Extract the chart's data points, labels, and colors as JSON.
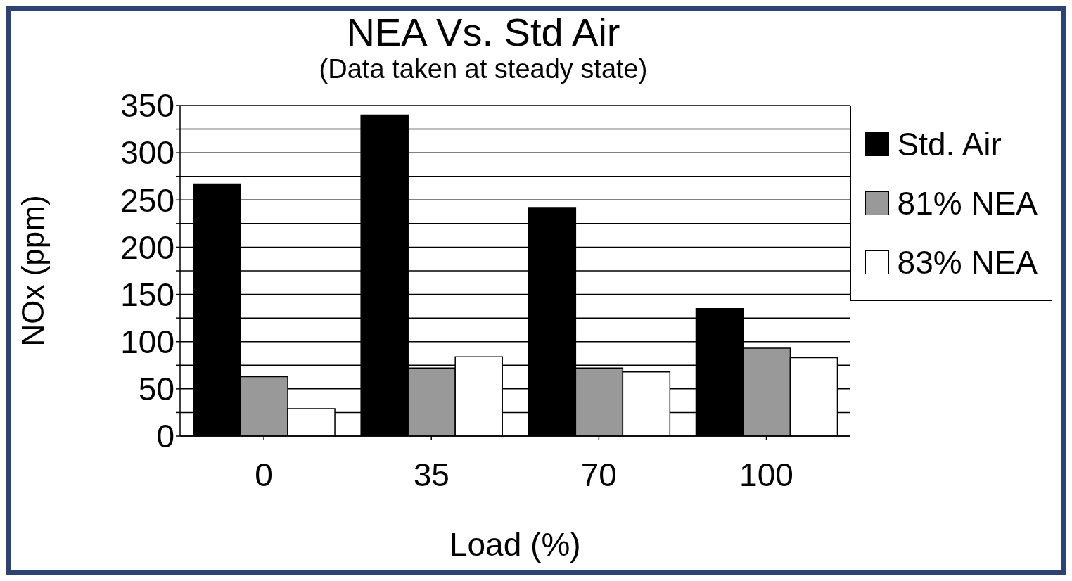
{
  "chart_data": {
    "type": "bar",
    "title": "NEA Vs. Std Air",
    "subtitle": "(Data taken at steady state)",
    "xlabel": "Load (%)",
    "ylabel": "NOx (ppm)",
    "categories": [
      "0",
      "35",
      "70",
      "100"
    ],
    "series": [
      {
        "name": "Std. Air",
        "color": "#000000",
        "values": [
          267,
          340,
          242,
          135
        ]
      },
      {
        "name": "81% NEA",
        "color": "#999999",
        "values": [
          63,
          72,
          72,
          93
        ]
      },
      {
        "name": "83% NEA",
        "color": "#ffffff",
        "values": [
          29,
          84,
          68,
          83
        ]
      }
    ],
    "ylim": [
      0,
      350
    ],
    "yticks": [
      0,
      {
        "value": 25,
        "label": null
      },
      50,
      {
        "value": 75,
        "label": null
      },
      100,
      {
        "value": 125,
        "label": null
      },
      150,
      {
        "value": 175,
        "label": null
      },
      200,
      {
        "value": 225,
        "label": null
      },
      250,
      {
        "value": 275,
        "label": null
      },
      300,
      {
        "value": 325,
        "label": null
      },
      350
    ],
    "grid": "y",
    "legend": "top right"
  }
}
